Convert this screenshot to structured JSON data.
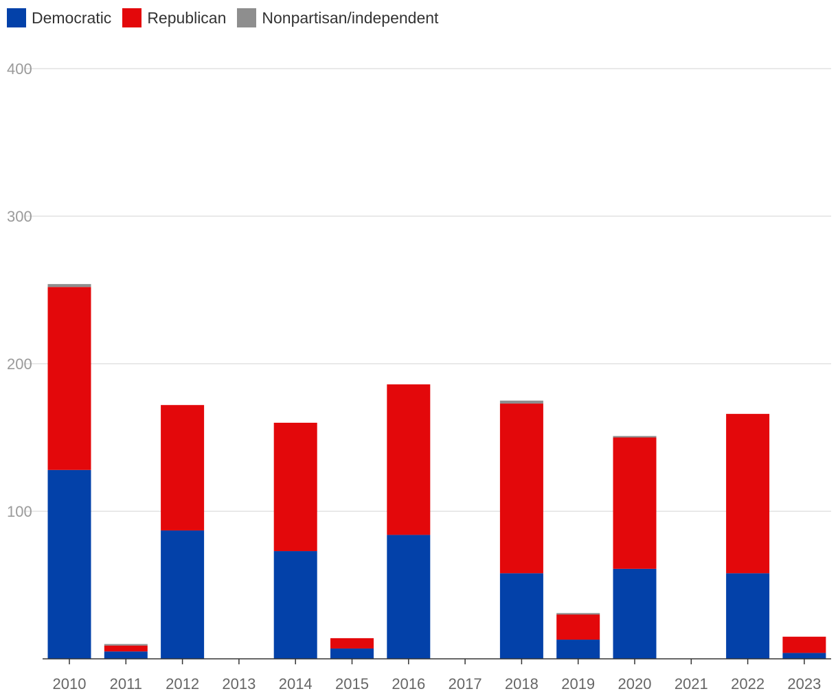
{
  "chart_data": {
    "type": "bar",
    "stacked": true,
    "categories": [
      "2010",
      "2011",
      "2012",
      "2013",
      "2014",
      "2015",
      "2016",
      "2017",
      "2018",
      "2019",
      "2020",
      "2021",
      "2022",
      "2023"
    ],
    "series": [
      {
        "name": "Democratic",
        "color": "#0341a9",
        "values": [
          128,
          5,
          87,
          0,
          73,
          7,
          84,
          0,
          58,
          13,
          61,
          0,
          58,
          4
        ]
      },
      {
        "name": "Republican",
        "color": "#e3080b",
        "values": [
          124,
          4,
          85,
          0,
          87,
          7,
          102,
          0,
          115,
          17,
          89,
          0,
          108,
          11
        ]
      },
      {
        "name": "Nonpartisan/independent",
        "color": "#8e8e8e",
        "values": [
          2,
          1,
          0,
          0,
          0,
          0,
          0,
          0,
          2,
          1,
          1,
          0,
          0,
          0
        ]
      }
    ],
    "yticks": [
      100,
      200,
      300,
      400
    ],
    "ylim": [
      0,
      400
    ],
    "grid": true,
    "legend_position": "top-left",
    "title": "",
    "xlabel": "",
    "ylabel": ""
  }
}
